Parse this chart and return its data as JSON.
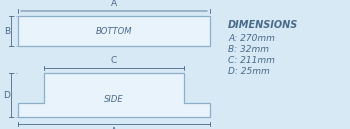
{
  "bg_color": "#d6e9f5",
  "line_color": "#8dafc8",
  "fill_color": "#e8f3fb",
  "text_color": "#4a6a8a",
  "dim_title": "DIMENSIONS",
  "dim_lines": [
    "A: 270mm",
    "B: 32mm",
    "C: 211mm",
    "D: 25mm"
  ],
  "label_bottom": "BOTTOM",
  "label_side": "SIDE",
  "label_a_top": "A",
  "label_b": "B",
  "label_c": "C",
  "label_d": "D",
  "label_a_bot": "A",
  "figsize": [
    3.5,
    1.29
  ],
  "dpi": 100
}
